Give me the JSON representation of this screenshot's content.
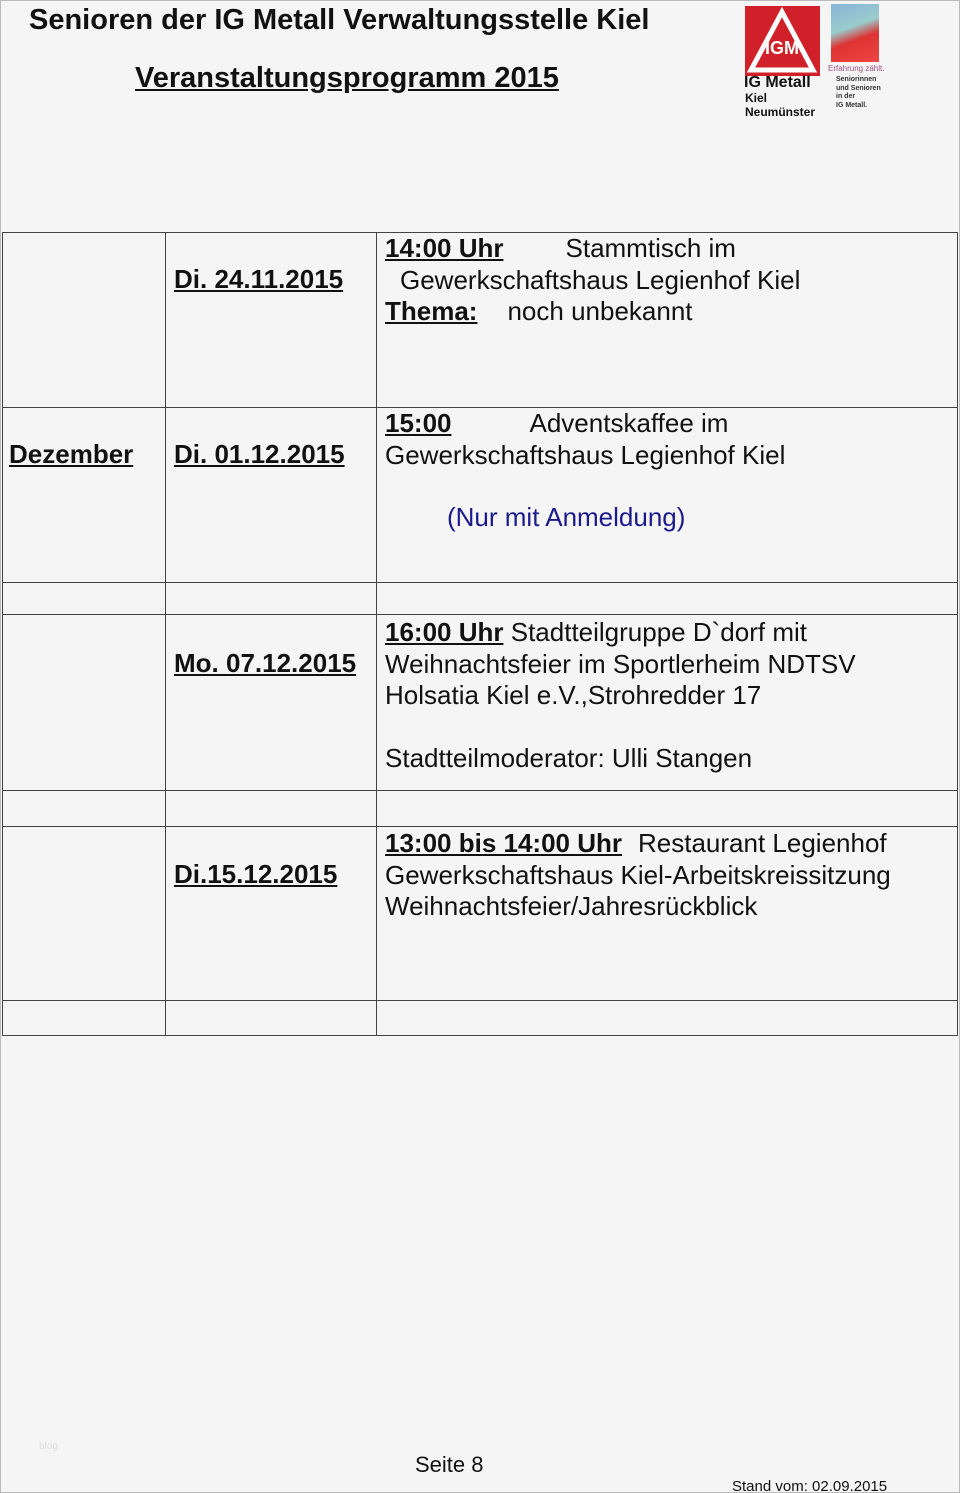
{
  "header": {
    "title": "Senioren der IG Metall Verwaltungsstelle Kiel",
    "subtitle": "Veranstaltungsprogramm 2015",
    "logo": {
      "name": "IG Metall",
      "line1": "Kiel",
      "line2": "Neumünster",
      "tagline": "Erfahrung zählt.",
      "tagline2": [
        "Seniorinnen",
        "und Senioren",
        "in der",
        "IG Metall."
      ],
      "color": "#d0202a"
    }
  },
  "events": [
    {
      "month": "",
      "date": "Di. 24.11.2015",
      "time": "14:00 Uhr",
      "lines": [
        "Stammtisch im",
        "Gewerkschaftshaus Legienhof Kiel"
      ],
      "theme_label": "Thema:",
      "theme": "noch unbekannt"
    },
    {
      "month": "Dezember",
      "date": "Di. 01.12.2015",
      "time": "15:00",
      "lines": [
        "Adventskaffee im",
        "Gewerkschaftshaus Legienhof Kiel"
      ],
      "note": "(Nur mit Anmeldung)"
    },
    {
      "date": "Mo. 07.12.2015",
      "time": "16:00 Uhr",
      "lines": [
        "Stadtteilgruppe D`dorf mit",
        "Weihnachtsfeier im Sportlerheim NDTSV",
        "Holsatia Kiel e.V.,Strohredder 17"
      ],
      "extra": "Stadtteilmoderator: Ulli Stangen"
    },
    {
      "date": "Di.15.12.2015",
      "time": "13:00 bis 14:00 Uhr",
      "lines": [
        "Restaurant Legienhof",
        "Gewerkschaftshaus Kiel-Arbeitskreissitzung",
        "Weihnachtsfeier/Jahresrückblick"
      ]
    }
  ],
  "footer": {
    "watermark": "blog",
    "page": "Seite 8",
    "stand": "Stand vom: 02.09.2015"
  }
}
